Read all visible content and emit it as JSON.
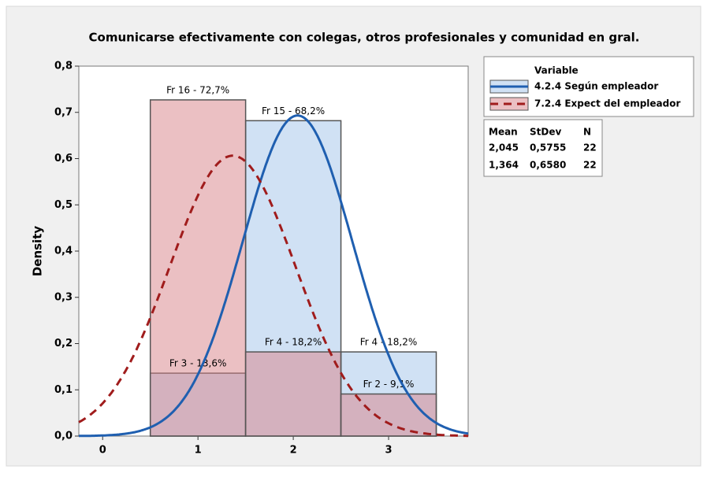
{
  "chart_data": {
    "type": "histogram",
    "title": "Comunicarse efectivamente con colegas, otros profesionales y comunidad en gral.",
    "y_label": "Density",
    "bins": [
      0.5,
      1.5,
      2.5,
      3.5
    ],
    "xlim": [
      -0.25,
      3.835
    ],
    "xticks": [
      0,
      1,
      2,
      3
    ],
    "ylim": [
      0,
      0.8
    ],
    "yticks": [
      {
        "value": 0,
        "label": "0,0"
      },
      {
        "value": 0.1,
        "label": "0,1"
      },
      {
        "value": 0.2,
        "label": "0,2"
      },
      {
        "value": 0.3,
        "label": "0,3"
      },
      {
        "value": 0.4,
        "label": "0,4"
      },
      {
        "value": 0.5,
        "label": "0,5"
      },
      {
        "value": 0.6,
        "label": "0,6"
      },
      {
        "value": 0.7,
        "label": "0,7"
      },
      {
        "value": 0.8,
        "label": "0,8"
      }
    ],
    "legend_title": "Variable",
    "stats_headers": [
      "Mean",
      "StDev",
      "N"
    ],
    "series": [
      {
        "name": "4.2.4 Según empleador",
        "color": "#1f5fb0",
        "fill": "rgba(170,200,235,0.55)",
        "dash": false,
        "values": [
          0.136,
          0.682,
          0.182
        ],
        "value_labels": [
          "Fr 3 - 13,6%",
          "Fr 15 - 68,2%",
          "Fr 4 - 18,2%"
        ],
        "mean": {
          "value": 2.045,
          "label": "2,045"
        },
        "stdev": {
          "value": 0.5755,
          "label": "0,5755"
        },
        "n": 22
      },
      {
        "name": "7.2.4 Expect del empleador",
        "color": "#a01c1c",
        "fill": "rgba(215,130,135,0.5)",
        "dash": true,
        "values": [
          0.727,
          0.182,
          0.091
        ],
        "value_labels": [
          "Fr 16 - 72,7%",
          "Fr 4 - 18,2%",
          "Fr 2 - 9,1%"
        ],
        "mean": {
          "value": 1.364,
          "label": "1,364"
        },
        "stdev": {
          "value": 0.658,
          "label": "0,6580"
        },
        "n": 22
      }
    ]
  }
}
